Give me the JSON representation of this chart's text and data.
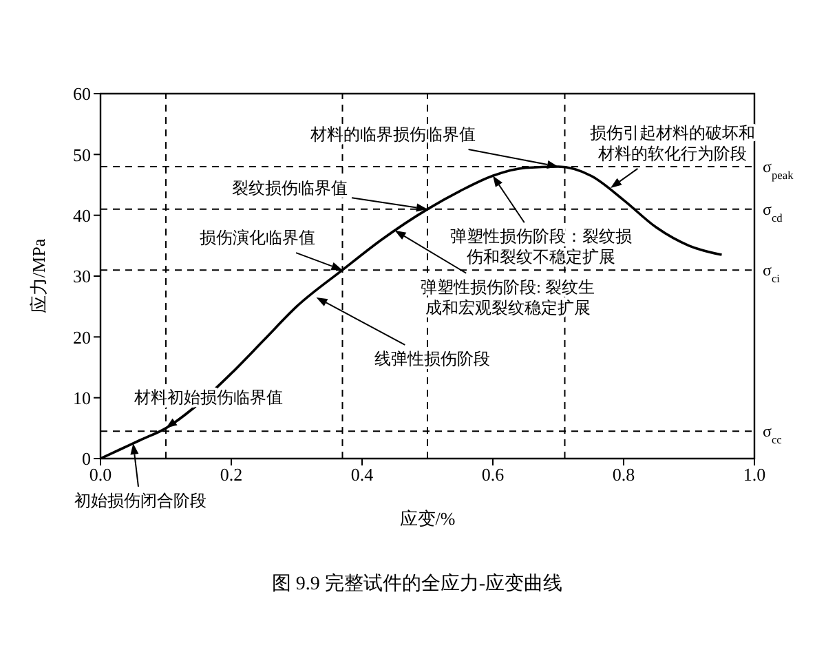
{
  "chart_data": {
    "type": "line",
    "xlabel": "应变/%",
    "ylabel": "应力/MPa",
    "x": [
      0,
      0.03,
      0.06,
      0.1,
      0.15,
      0.2,
      0.25,
      0.3,
      0.37,
      0.43,
      0.5,
      0.55,
      0.6,
      0.65,
      0.7,
      0.75,
      0.8,
      0.85,
      0.9,
      0.95
    ],
    "series": [
      {
        "color": "#000000",
        "values": [
          0,
          1.5,
          3,
          5,
          9,
          14,
          19.5,
          25,
          31,
          36,
          41,
          44,
          46.5,
          47.8,
          48,
          46.5,
          42.5,
          38,
          35,
          33.5
        ]
      }
    ],
    "xlim": [
      0,
      1
    ],
    "xticks": [
      {
        "value": 0,
        "label": "0.0"
      },
      {
        "value": 0.2,
        "label": "0.2"
      },
      {
        "value": 0.4,
        "label": "0.4"
      },
      {
        "value": 0.6,
        "label": "0.6"
      },
      {
        "value": 0.8,
        "label": "0.8"
      },
      {
        "value": 1,
        "label": "1.0"
      }
    ],
    "ylim": [
      0,
      60
    ],
    "yticks": [
      0,
      10,
      20,
      30,
      40,
      50,
      60
    ],
    "ref_lines": [
      {
        "axis": "y",
        "value": 48,
        "label": "σ$_{peak}$",
        "color": "#000000",
        "line_style": "dashed"
      },
      {
        "axis": "y",
        "value": 41,
        "label": "σ$_{cd}$",
        "color": "#000000",
        "line_style": "dashed"
      },
      {
        "axis": "y",
        "value": 31,
        "label": "σ$_{ci}$",
        "color": "#000000",
        "line_style": "dashed"
      },
      {
        "axis": "y",
        "value": 4.5,
        "label": "σ$_{cc}$",
        "color": "#000000",
        "line_style": "dashed"
      },
      {
        "axis": "x",
        "value": 0.1,
        "color": "#000000",
        "line_style": "dashed"
      },
      {
        "axis": "x",
        "value": 0.37,
        "color": "#000000",
        "line_style": "dashed"
      },
      {
        "axis": "x",
        "value": 0.5,
        "color": "#000000",
        "line_style": "dashed"
      },
      {
        "axis": "x",
        "value": 0.71,
        "color": "#000000",
        "line_style": "dashed"
      }
    ],
    "annotations": [
      {
        "text": "材料的临界损伤临界值",
        "x": 0.7,
        "y": 48
      },
      {
        "text": "损伤引起材料的破坏和材料的软化行为阶段",
        "x": 0.78,
        "y": 44.5
      },
      {
        "text": "裂纹损伤临界值",
        "x": 0.5,
        "y": 41
      },
      {
        "text": "损伤演化临界值",
        "x": 0.37,
        "y": 31
      },
      {
        "text": "弹塑性损伤阶段：裂纹损伤和裂纹不稳定扩展",
        "x": 0.6,
        "y": 46.5
      },
      {
        "text": "弹塑性损伤阶段: 裂纹生成和宏观裂纹稳定扩展",
        "x": 0.45,
        "y": 37.5
      },
      {
        "text": "线弹性损伤阶段",
        "x": 0.33,
        "y": 26.5
      },
      {
        "text": "材料初始损伤临界值",
        "x": 0.1,
        "y": 5
      },
      {
        "text": "初始损伤闭合阶段",
        "x": 0.05,
        "y": 2.5
      },
      "图 9.9  完整试件的全应力-应变曲线"
    ]
  }
}
